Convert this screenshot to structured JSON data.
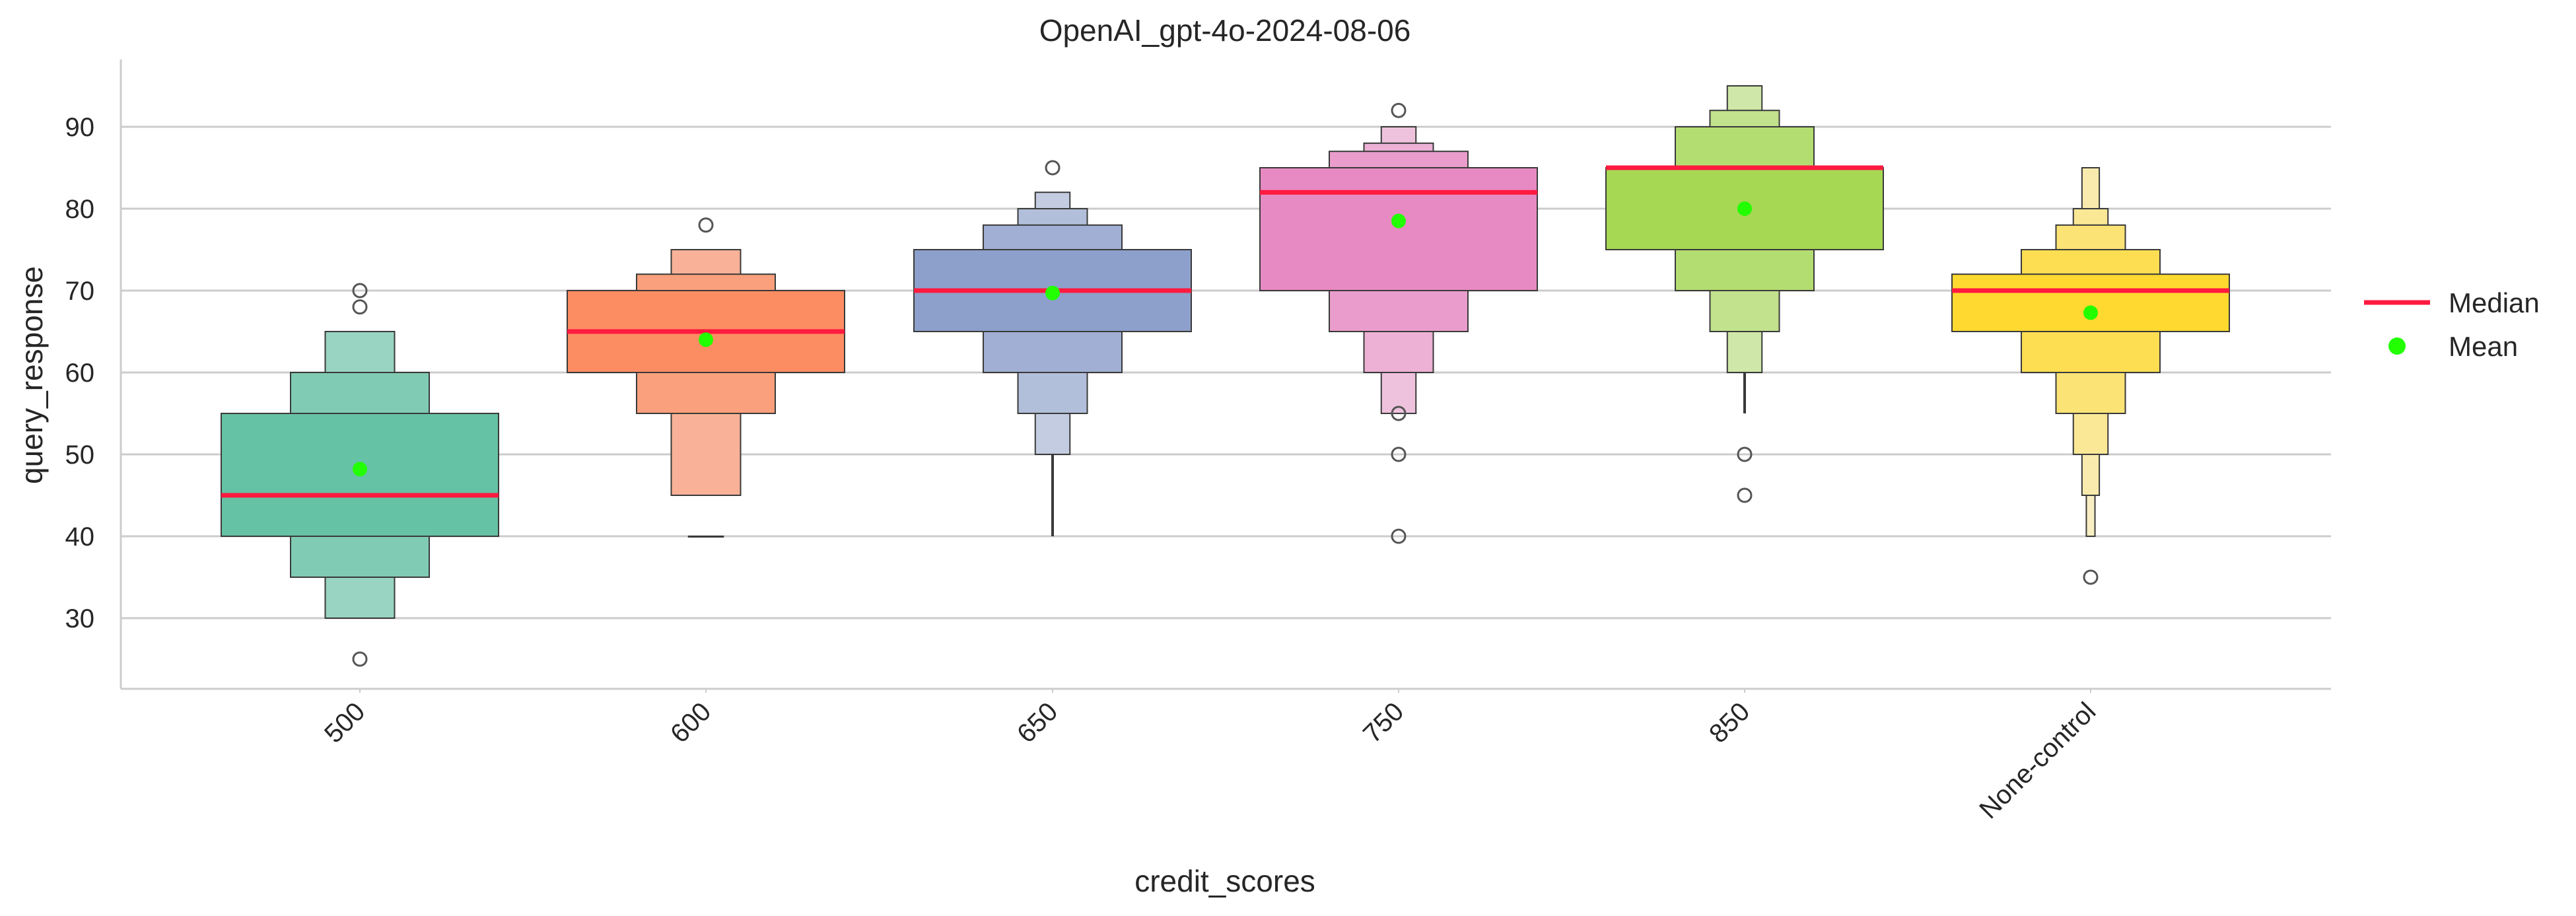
{
  "chart_data": {
    "type": "boxen",
    "title": "OpenAI_gpt-4o-2024-08-06",
    "xlabel": "credit_scores",
    "ylabel": "query_response",
    "ylim": [
      21.5,
      98.5
    ],
    "yticks": [
      30,
      40,
      50,
      60,
      70,
      80,
      90
    ],
    "grid": "horizontal",
    "legend_position": "right",
    "legend": [
      {
        "label": "Median",
        "kind": "line",
        "color": "#ff1a40"
      },
      {
        "label": "Mean",
        "kind": "dot",
        "color": "#22ff00"
      }
    ],
    "categories": [
      "500",
      "600",
      "650",
      "750",
      "850",
      "None-control"
    ],
    "colors": [
      "#66c2a5",
      "#fc8d62",
      "#8da0cb",
      "#e78ac3",
      "#a6d854",
      "#ffd92f"
    ],
    "groups": [
      {
        "category": "500",
        "median": 45,
        "mean": 48.2,
        "boxes": [
          [
            40,
            55
          ],
          [
            35,
            60
          ],
          [
            30,
            65
          ]
        ],
        "whiskers": [],
        "outliers": [
          25,
          68,
          70
        ]
      },
      {
        "category": "600",
        "median": 65,
        "mean": 64,
        "boxes": [
          [
            60,
            70
          ],
          [
            55,
            72
          ],
          [
            45,
            75
          ],
          [
            40,
            40
          ]
        ],
        "whiskers": [],
        "outliers": [
          78
        ]
      },
      {
        "category": "650",
        "median": 70,
        "mean": 69.7,
        "boxes": [
          [
            65,
            75
          ],
          [
            60,
            78
          ],
          [
            55,
            80
          ],
          [
            50,
            82
          ]
        ],
        "whiskers": [
          [
            40,
            50
          ]
        ],
        "outliers": [
          85
        ]
      },
      {
        "category": "750",
        "median": 82,
        "mean": 78.5,
        "boxes": [
          [
            70,
            85
          ],
          [
            65,
            87
          ],
          [
            60,
            88
          ],
          [
            55,
            90
          ]
        ],
        "whiskers": [],
        "outliers": [
          40,
          50,
          55,
          92
        ]
      },
      {
        "category": "850",
        "median": 85,
        "mean": 80,
        "boxes": [
          [
            75,
            85
          ],
          [
            70,
            90
          ],
          [
            65,
            92
          ],
          [
            60,
            95
          ]
        ],
        "whiskers": [
          [
            55,
            60
          ]
        ],
        "outliers": [
          45,
          50
        ]
      },
      {
        "category": "None-control",
        "median": 70,
        "mean": 67.3,
        "boxes": [
          [
            65,
            72
          ],
          [
            60,
            75
          ],
          [
            55,
            78
          ],
          [
            50,
            80
          ],
          [
            45,
            85
          ],
          [
            40,
            85
          ]
        ],
        "whiskers": [],
        "outliers": [
          35
        ]
      }
    ]
  }
}
